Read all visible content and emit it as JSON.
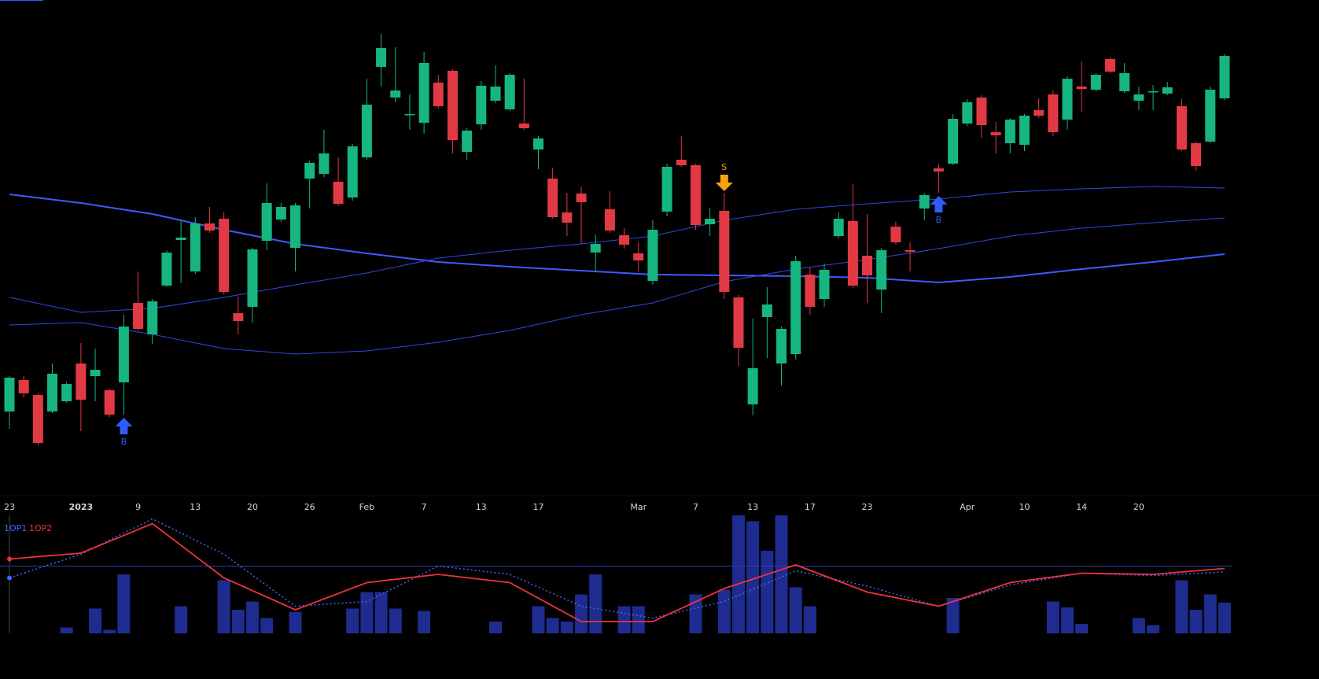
{
  "chart_data": [
    {
      "type": "candlestick",
      "categories": [
        "23",
        null,
        null,
        null,
        null,
        "2023",
        null,
        null,
        null,
        "9",
        null,
        null,
        null,
        "13",
        null,
        null,
        null,
        "20",
        null,
        null,
        null,
        "26",
        null,
        null,
        null,
        "Feb",
        null,
        null,
        null,
        "7",
        null,
        null,
        null,
        "13",
        null,
        null,
        null,
        "17",
        null,
        null,
        null,
        null,
        null,
        null,
        "Mar",
        null,
        null,
        null,
        "7",
        null,
        null,
        null,
        "13",
        null,
        null,
        null,
        "17",
        null,
        null,
        null,
        "23",
        null,
        null,
        null,
        null,
        null,
        null,
        "Apr",
        null,
        null,
        null,
        "10",
        null,
        null,
        null,
        "14",
        null,
        null,
        null,
        "20",
        null,
        null,
        null,
        null,
        null,
        null
      ],
      "open": [
        77,
        117,
        98,
        77,
        90,
        138,
        122,
        104,
        114,
        215,
        175,
        237,
        295,
        255,
        316,
        322,
        202,
        210,
        294,
        321,
        285,
        373,
        379,
        369,
        349,
        400,
        515,
        476,
        454,
        444,
        495,
        510,
        407,
        442,
        472,
        461,
        443,
        410,
        373,
        330,
        354,
        279,
        334,
        301,
        278,
        243,
        331,
        397,
        390,
        315,
        332,
        222,
        86,
        197,
        138,
        150,
        251,
        220,
        300,
        319,
        275,
        232,
        312,
        282,
        335,
        386,
        392,
        443,
        476,
        432,
        418,
        416,
        460,
        480,
        448,
        490,
        486,
        525,
        484,
        472,
        483,
        481,
        465,
        418,
        420,
        475
      ],
      "high": [
        122,
        122,
        100,
        138,
        115,
        164,
        157,
        106,
        200,
        255,
        220,
        282,
        320,
        324,
        337,
        330,
        223,
        285,
        367,
        342,
        342,
        396,
        435,
        400,
        417,
        500,
        557,
        540,
        480,
        534,
        505,
        512,
        437,
        497,
        517,
        507,
        500,
        427,
        387,
        355,
        362,
        302,
        357,
        310,
        292,
        320,
        392,
        427,
        392,
        336,
        355,
        225,
        195,
        235,
        185,
        275,
        260,
        265,
        330,
        366,
        328,
        285,
        318,
        292,
        355,
        392,
        455,
        474,
        479,
        445,
        450,
        455,
        475,
        485,
        503,
        522,
        507,
        527,
        520,
        490,
        492,
        496,
        475,
        420,
        490,
        531
      ],
      "low": [
        55,
        95,
        34,
        75,
        88,
        52,
        90,
        70,
        73,
        180,
        163,
        235,
        240,
        252,
        304,
        226,
        175,
        190,
        282,
        318,
        255,
        335,
        375,
        338,
        345,
        397,
        490,
        470,
        435,
        430,
        462,
        405,
        397,
        435,
        469,
        459,
        435,
        385,
        322,
        300,
        290,
        255,
        304,
        284,
        255,
        238,
        325,
        388,
        308,
        300,
        220,
        135,
        72,
        145,
        110,
        143,
        200,
        210,
        297,
        234,
        215,
        202,
        289,
        255,
        320,
        355,
        390,
        440,
        425,
        405,
        405,
        408,
        450,
        427,
        435,
        458,
        484,
        507,
        482,
        460,
        460,
        479,
        408,
        383,
        418,
        473
      ],
      "close": [
        120,
        100,
        37,
        125,
        112,
        92,
        130,
        73,
        185,
        182,
        217,
        279,
        298,
        316,
        307,
        229,
        192,
        283,
        342,
        337,
        339,
        393,
        405,
        341,
        414,
        467,
        539,
        485,
        455,
        520,
        465,
        422,
        434,
        491,
        490,
        505,
        437,
        424,
        324,
        317,
        343,
        290,
        307,
        289,
        269,
        308,
        388,
        390,
        314,
        322,
        229,
        158,
        132,
        213,
        182,
        268,
        210,
        257,
        322,
        237,
        250,
        282,
        292,
        280,
        352,
        382,
        449,
        470,
        441,
        428,
        448,
        453,
        453,
        432,
        500,
        487,
        505,
        509,
        507,
        480,
        484,
        489,
        410,
        389,
        486,
        529
      ],
      "up_color": "#17b57f",
      "down_color": "#e23a45",
      "ylim": [
        0,
        600
      ],
      "overlays": {
        "x": [
          0,
          5,
          10,
          15,
          20,
          25,
          30,
          35,
          40,
          45,
          50,
          55,
          60,
          65,
          70,
          75,
          80,
          85
        ],
        "series": [
          {
            "color": "#3d5afe",
            "values": [
              353,
              342,
              328,
              308,
              290,
              278,
              267,
              261,
              256,
              251,
              250,
              249,
              247,
              241,
              248,
              258,
              267,
              277
            ]
          },
          {
            "color": "#3048e0",
            "values": [
              222,
              203,
              208,
              222,
              238,
              253,
              272,
              282,
              290,
              300,
              320,
              334,
              341,
              347,
              356,
              360,
              363,
              361
            ]
          },
          {
            "color": "#3048e0",
            "values": [
              187,
              190,
              175,
              157,
              150,
              154,
              165,
              180,
              200,
              215,
              242,
              258,
              270,
              284,
              300,
              310,
              317,
              323
            ]
          }
        ]
      },
      "signals": [
        {
          "index": 8,
          "label": "B",
          "color": "#2f5cff"
        },
        {
          "index": 50,
          "label": "S",
          "color": "#f5a30f"
        },
        {
          "index": 65,
          "label": "B",
          "color": "#2f5cff"
        }
      ]
    },
    {
      "type": "indicator",
      "volume": {
        "color": "#1f2c8f",
        "values": [
          0,
          0,
          0,
          0,
          5,
          0,
          21,
          3,
          50,
          0,
          0,
          0,
          23,
          0,
          0,
          45,
          20,
          27,
          13,
          0,
          18,
          0,
          0,
          0,
          21,
          35,
          35,
          21,
          0,
          19,
          0,
          0,
          0,
          0,
          10,
          0,
          0,
          23,
          13,
          10,
          33,
          50,
          0,
          23,
          23,
          0,
          0,
          0,
          33,
          0,
          37,
          100,
          95,
          70,
          100,
          39,
          23,
          0,
          0,
          0,
          0,
          0,
          0,
          0,
          0,
          0,
          30,
          0,
          0,
          0,
          0,
          0,
          0,
          27,
          22,
          8,
          0,
          0,
          0,
          13,
          7,
          0,
          45,
          20,
          33,
          26
        ]
      },
      "x": [
        0,
        5,
        10,
        15,
        20,
        25,
        30,
        35,
        40,
        45,
        50,
        55,
        60,
        65,
        70,
        75,
        80,
        85
      ],
      "series": [
        {
          "name": "1OP1",
          "color": "#4466ff",
          "values": [
            47,
            67,
            97,
            67,
            23,
            27,
            57,
            50,
            23,
            13,
            27,
            53,
            40,
            23,
            41,
            51,
            49,
            52
          ]
        },
        {
          "name": "1OP2",
          "color": "#f0323c",
          "values": [
            63,
            68,
            93,
            47,
            20,
            43,
            50,
            43,
            10,
            10,
            38,
            58,
            35,
            23,
            43,
            51,
            50,
            55
          ]
        }
      ],
      "reference_line": 57,
      "ylim": [
        0,
        100
      ]
    }
  ]
}
